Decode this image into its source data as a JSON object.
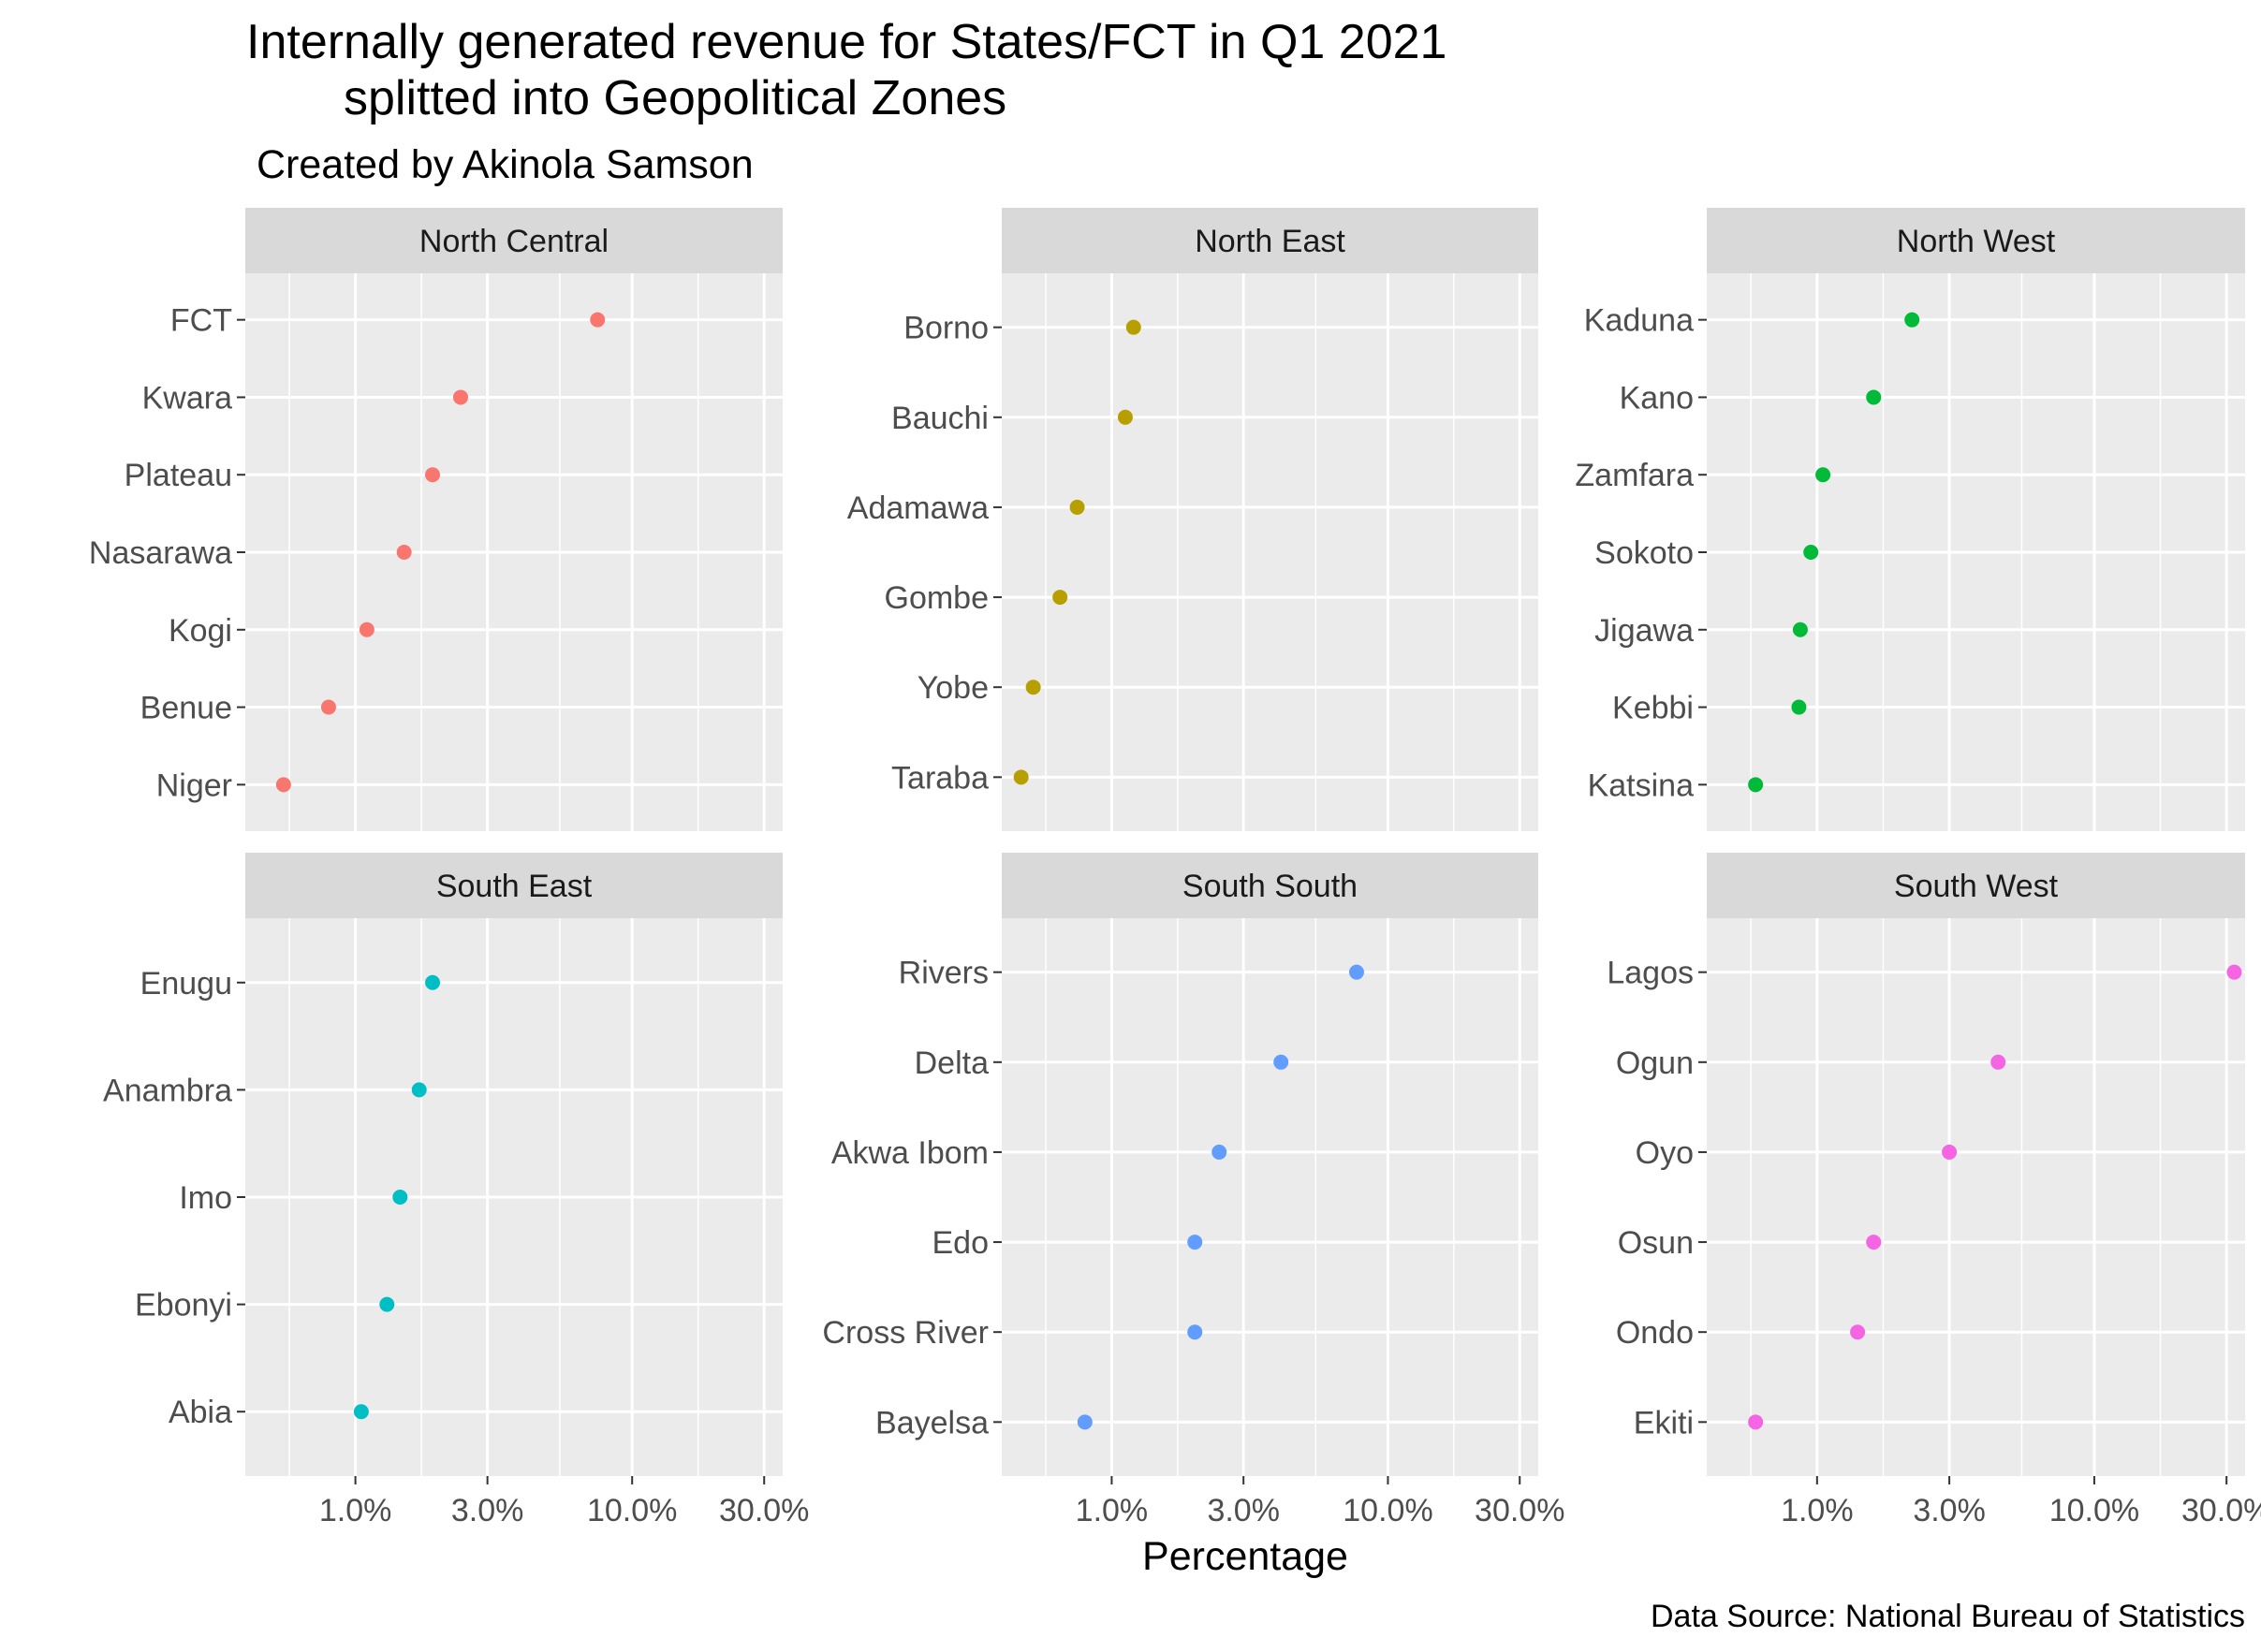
{
  "chart_data": {
    "type": "scatter",
    "title": "Internally generated revenue for States/FCT in Q1 2021",
    "title_line2": "splitted into Geopolitical Zones",
    "subtitle": "Created by Akinola Samson",
    "caption": "Data Source: National Bureau of Statistics",
    "xlabel": "Percentage",
    "ylabel": "",
    "x_scale": "log10",
    "xlim": [
      0.4,
      35
    ],
    "x_ticks": [
      1,
      3,
      10,
      30
    ],
    "x_tick_labels": [
      "1.0%",
      "3.0%",
      "10.0%",
      "30.0%"
    ],
    "grid": true,
    "legend": "none",
    "panels": [
      {
        "name": "North Central",
        "color": "#F8766D",
        "states": [
          "FCT",
          "Kwara",
          "Plateau",
          "Nasarawa",
          "Kogi",
          "Benue",
          "Niger"
        ],
        "values": [
          7.5,
          2.4,
          1.9,
          1.5,
          1.1,
          0.8,
          0.55
        ]
      },
      {
        "name": "North East",
        "color": "#B79F00",
        "states": [
          "Borno",
          "Bauchi",
          "Adamawa",
          "Gombe",
          "Yobe",
          "Taraba"
        ],
        "values": [
          1.2,
          1.12,
          0.75,
          0.65,
          0.52,
          0.47
        ]
      },
      {
        "name": "North West",
        "color": "#00BA38",
        "states": [
          "Kaduna",
          "Kano",
          "Zamfara",
          "Sokoto",
          "Jigawa",
          "Kebbi",
          "Katsina"
        ],
        "values": [
          2.2,
          1.6,
          1.05,
          0.95,
          0.87,
          0.86,
          0.6
        ]
      },
      {
        "name": "South East",
        "color": "#00BFC4",
        "states": [
          "Enugu",
          "Anambra",
          "Imo",
          "Ebonyi",
          "Abia"
        ],
        "values": [
          1.9,
          1.7,
          1.45,
          1.3,
          1.05
        ]
      },
      {
        "name": "South South",
        "color": "#619CFF",
        "states": [
          "Rivers",
          "Delta",
          "Akwa Ibom",
          "Edo",
          "Cross River",
          "Bayelsa"
        ],
        "values": [
          7.7,
          4.1,
          2.45,
          2.0,
          2.0,
          0.8
        ]
      },
      {
        "name": "South West",
        "color": "#F564E3",
        "states": [
          "Lagos",
          "Ogun",
          "Oyo",
          "Osun",
          "Ondo",
          "Ekiti"
        ],
        "values": [
          32,
          4.5,
          3.0,
          1.6,
          1.4,
          0.6
        ]
      }
    ]
  }
}
